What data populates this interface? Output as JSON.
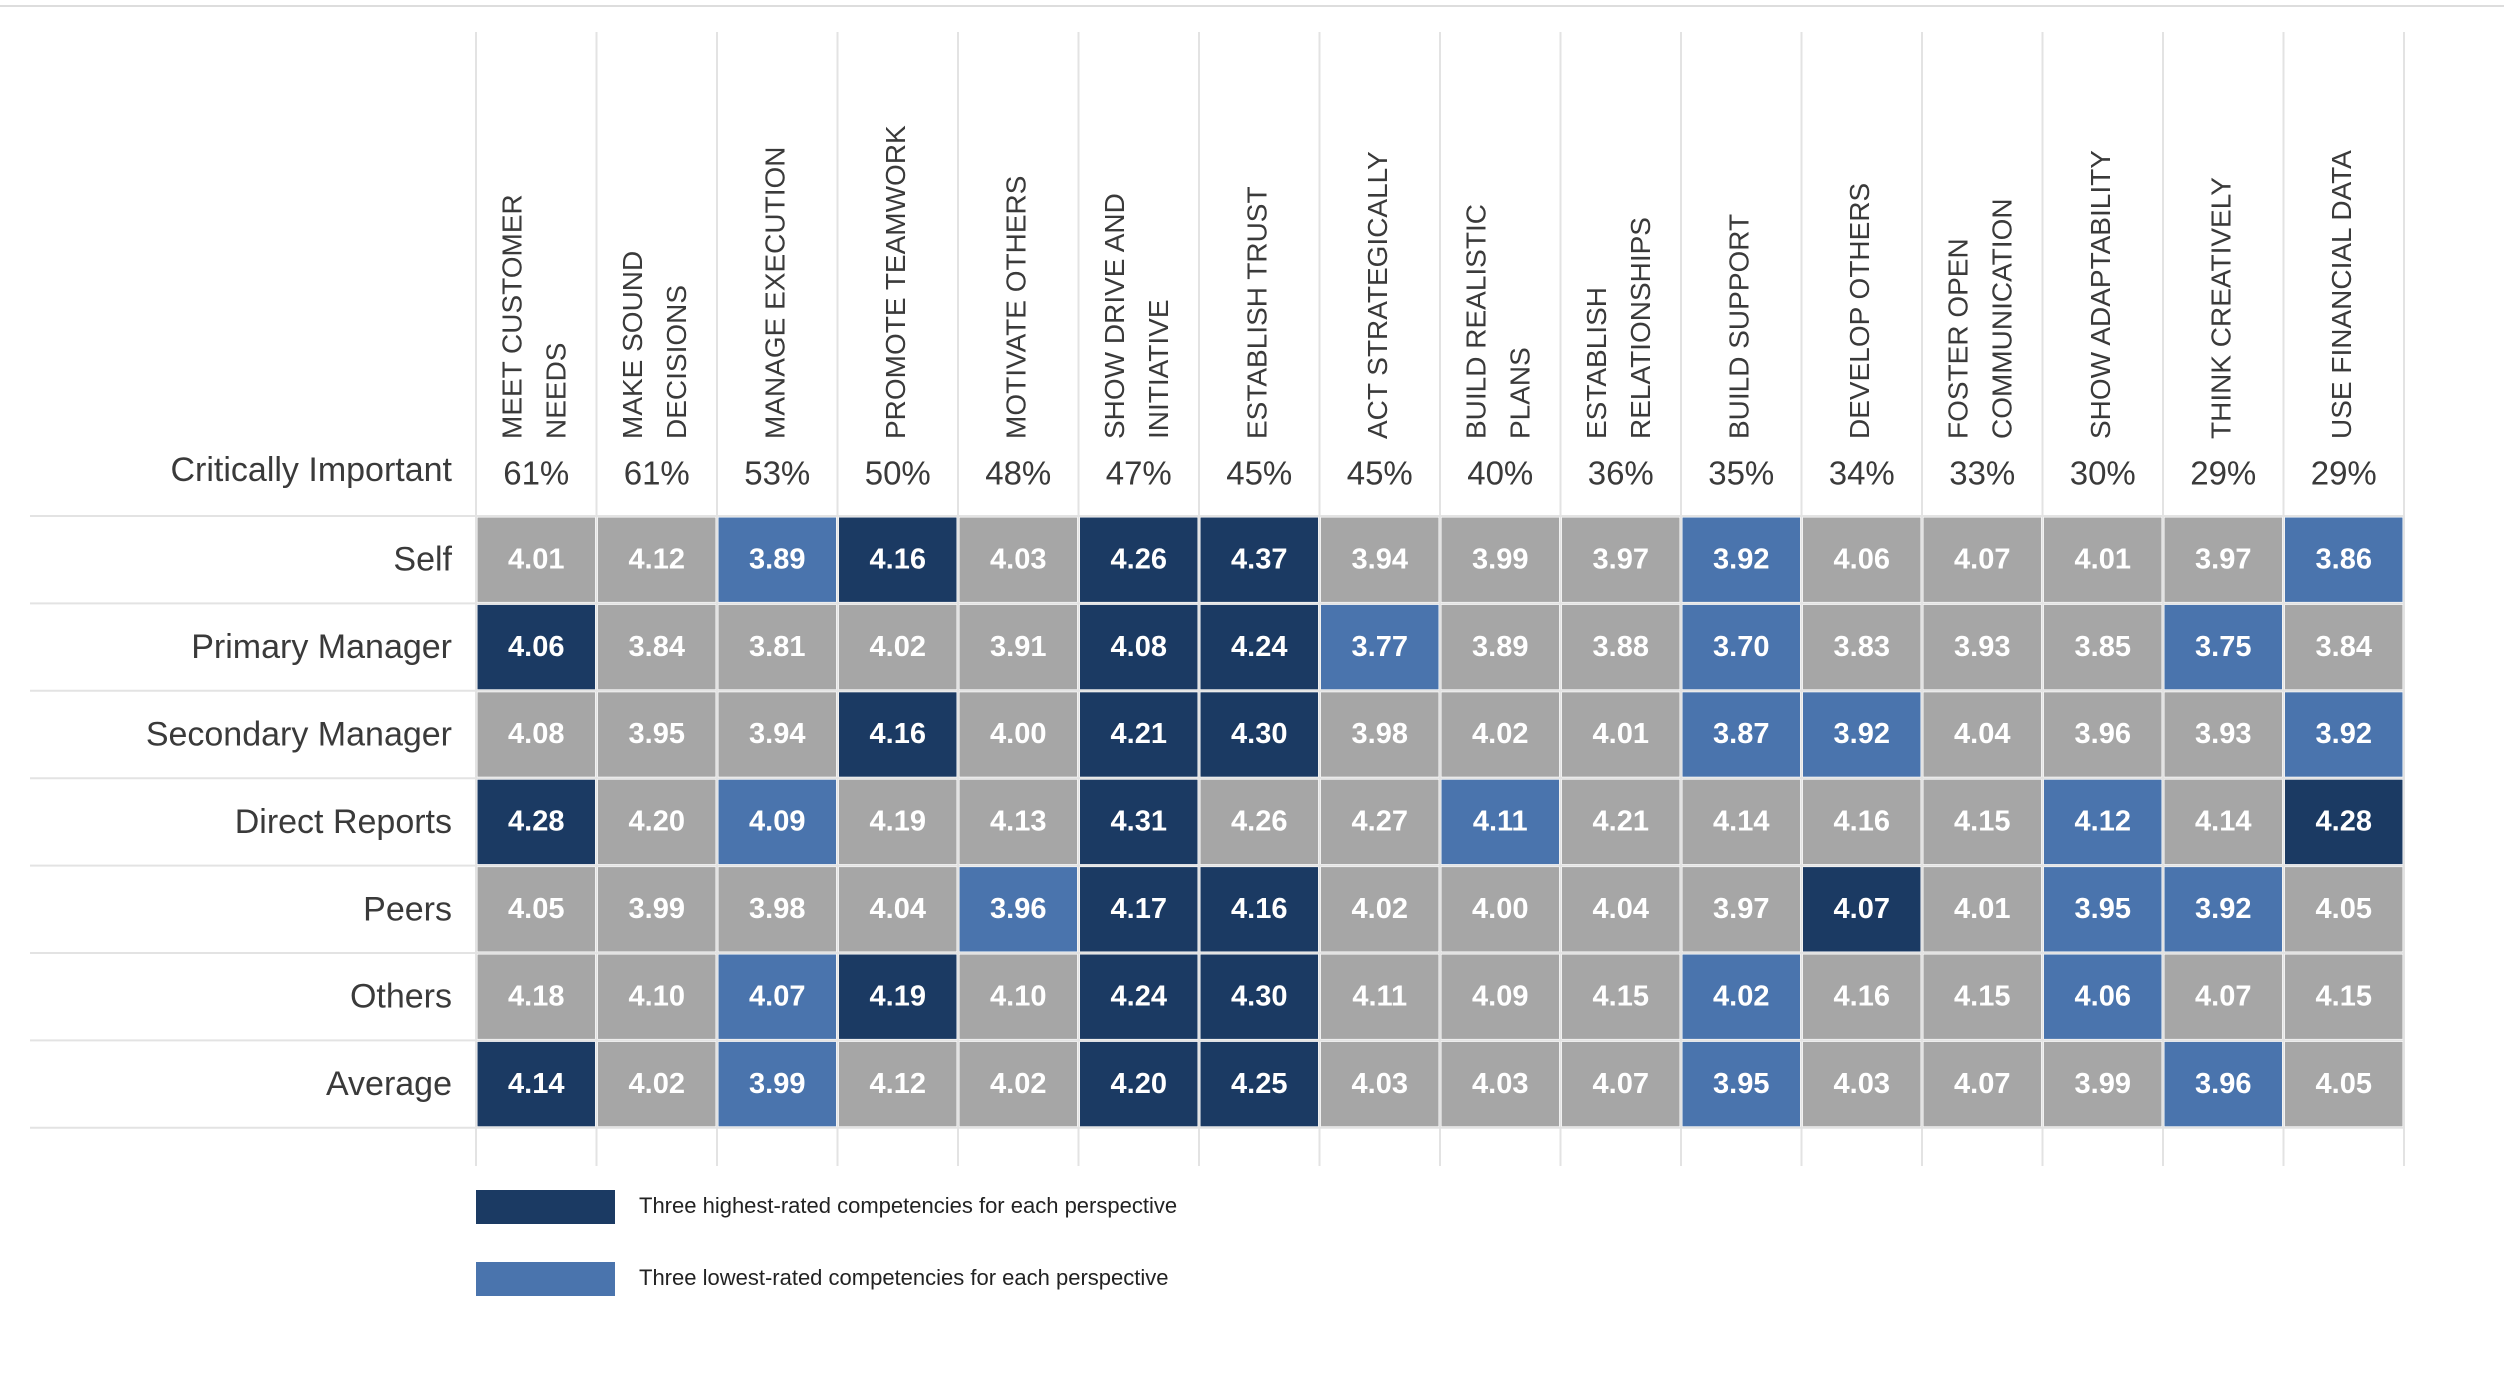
{
  "chart_data": {
    "type": "heatmap",
    "row_header": "Critically Important",
    "columns": [
      [
        "MEET CUSTOMER",
        "NEEDS"
      ],
      [
        "MAKE SOUND",
        "DECISIONS"
      ],
      [
        "MANAGE EXECUTION"
      ],
      [
        "PROMOTE TEAMWORK"
      ],
      [
        "MOTIVATE OTHERS"
      ],
      [
        "SHOW DRIVE AND",
        "INITIATIVE"
      ],
      [
        "ESTABLISH TRUST"
      ],
      [
        "ACT STRATEGICALLY"
      ],
      [
        "BUILD REALISTIC",
        "PLANS"
      ],
      [
        "ESTABLISH",
        "RELATIONSHIPS"
      ],
      [
        "BUILD SUPPORT"
      ],
      [
        "DEVELOP OTHERS"
      ],
      [
        "FOSTER OPEN",
        "COMMUNICATION"
      ],
      [
        "SHOW ADAPTABILITY"
      ],
      [
        "THINK CREATIVELY"
      ],
      [
        "USE FINANCIAL DATA"
      ]
    ],
    "importance": {
      "values": [
        61,
        61,
        53,
        50,
        48,
        47,
        45,
        45,
        40,
        36,
        35,
        34,
        33,
        30,
        29,
        29
      ],
      "value_labels": [
        "61%",
        "61%",
        "53%",
        "50%",
        "48%",
        "47%",
        "45%",
        "45%",
        "40%",
        "36%",
        "35%",
        "34%",
        "33%",
        "30%",
        "29%",
        "29%"
      ]
    },
    "rows": [
      "Self",
      "Primary Manager",
      "Secondary Manager",
      "Direct Reports",
      "Peers",
      "Others",
      "Average"
    ],
    "values": [
      [
        4.01,
        4.12,
        3.89,
        4.16,
        4.03,
        4.26,
        4.37,
        3.94,
        3.99,
        3.97,
        3.92,
        4.06,
        4.07,
        4.01,
        3.97,
        3.86
      ],
      [
        4.06,
        3.84,
        3.81,
        4.02,
        3.91,
        4.08,
        4.24,
        3.77,
        3.89,
        3.88,
        3.7,
        3.83,
        3.93,
        3.85,
        3.75,
        3.84
      ],
      [
        4.08,
        3.95,
        3.94,
        4.16,
        4.0,
        4.21,
        4.3,
        3.98,
        4.02,
        4.01,
        3.87,
        3.92,
        4.04,
        3.96,
        3.93,
        3.92
      ],
      [
        4.28,
        4.2,
        4.09,
        4.19,
        4.13,
        4.31,
        4.26,
        4.27,
        4.11,
        4.21,
        4.14,
        4.16,
        4.15,
        4.12,
        4.14,
        4.28
      ],
      [
        4.05,
        3.99,
        3.98,
        4.04,
        3.96,
        4.17,
        4.16,
        4.02,
        4.0,
        4.04,
        3.97,
        4.07,
        4.01,
        3.95,
        3.92,
        4.05
      ],
      [
        4.18,
        4.1,
        4.07,
        4.19,
        4.1,
        4.24,
        4.3,
        4.11,
        4.09,
        4.15,
        4.02,
        4.16,
        4.15,
        4.06,
        4.07,
        4.15
      ],
      [
        4.14,
        4.02,
        3.99,
        4.12,
        4.02,
        4.2,
        4.25,
        4.03,
        4.03,
        4.07,
        3.95,
        4.03,
        4.07,
        3.99,
        3.96,
        4.05
      ]
    ],
    "value_labels": [
      [
        "4.01",
        "4.12",
        "3.89",
        "4.16",
        "4.03",
        "4.26",
        "4.37",
        "3.94",
        "3.99",
        "3.97",
        "3.92",
        "4.06",
        "4.07",
        "4.01",
        "3.97",
        "3.86"
      ],
      [
        "4.06",
        "3.84",
        "3.81",
        "4.02",
        "3.91",
        "4.08",
        "4.24",
        "3.77",
        "3.89",
        "3.88",
        "3.70",
        "3.83",
        "3.93",
        "3.85",
        "3.75",
        "3.84"
      ],
      [
        "4.08",
        "3.95",
        "3.94",
        "4.16",
        "4.00",
        "4.21",
        "4.30",
        "3.98",
        "4.02",
        "4.01",
        "3.87",
        "3.92",
        "4.04",
        "3.96",
        "3.93",
        "3.92"
      ],
      [
        "4.28",
        "4.20",
        "4.09",
        "4.19",
        "4.13",
        "4.31",
        "4.26",
        "4.27",
        "4.11",
        "4.21",
        "4.14",
        "4.16",
        "4.15",
        "4.12",
        "4.14",
        "4.28"
      ],
      [
        "4.05",
        "3.99",
        "3.98",
        "4.04",
        "3.96",
        "4.17",
        "4.16",
        "4.02",
        "4.00",
        "4.04",
        "3.97",
        "4.07",
        "4.01",
        "3.95",
        "3.92",
        "4.05"
      ],
      [
        "4.18",
        "4.10",
        "4.07",
        "4.19",
        "4.10",
        "4.24",
        "4.30",
        "4.11",
        "4.09",
        "4.15",
        "4.02",
        "4.16",
        "4.15",
        "4.06",
        "4.07",
        "4.15"
      ],
      [
        "4.14",
        "4.02",
        "3.99",
        "4.12",
        "4.02",
        "4.20",
        "4.25",
        "4.03",
        "4.03",
        "4.07",
        "3.95",
        "4.03",
        "4.07",
        "3.99",
        "3.96",
        "4.05"
      ]
    ],
    "highlight": [
      [
        null,
        null,
        "low",
        "high",
        null,
        "high",
        "high",
        null,
        null,
        null,
        "low",
        null,
        null,
        null,
        null,
        "low"
      ],
      [
        "high",
        null,
        null,
        null,
        null,
        "high",
        "high",
        "low",
        null,
        null,
        "low",
        null,
        null,
        null,
        "low",
        null
      ],
      [
        null,
        null,
        null,
        "high",
        null,
        "high",
        "high",
        null,
        null,
        null,
        "low",
        "low",
        null,
        null,
        null,
        "low"
      ],
      [
        "high",
        null,
        "low",
        null,
        null,
        "high",
        null,
        null,
        "low",
        null,
        null,
        null,
        null,
        "low",
        null,
        "high"
      ],
      [
        null,
        null,
        null,
        null,
        "low",
        "high",
        "high",
        null,
        null,
        null,
        null,
        "high",
        null,
        "low",
        "low",
        null
      ],
      [
        null,
        null,
        "low",
        "high",
        null,
        "high",
        "high",
        null,
        null,
        null,
        "low",
        null,
        null,
        "low",
        null,
        null
      ],
      [
        "high",
        null,
        "low",
        null,
        null,
        "high",
        "high",
        null,
        null,
        null,
        "low",
        null,
        null,
        null,
        "low",
        null
      ]
    ],
    "base_color": "#a6a6a6",
    "legend": [
      {
        "key": "high",
        "name": "Three highest-rated competencies for each perspective",
        "color": "#1b3a63"
      },
      {
        "key": "low",
        "name": "Three lowest-rated competencies for each perspective",
        "color": "#4a74ad"
      }
    ]
  }
}
